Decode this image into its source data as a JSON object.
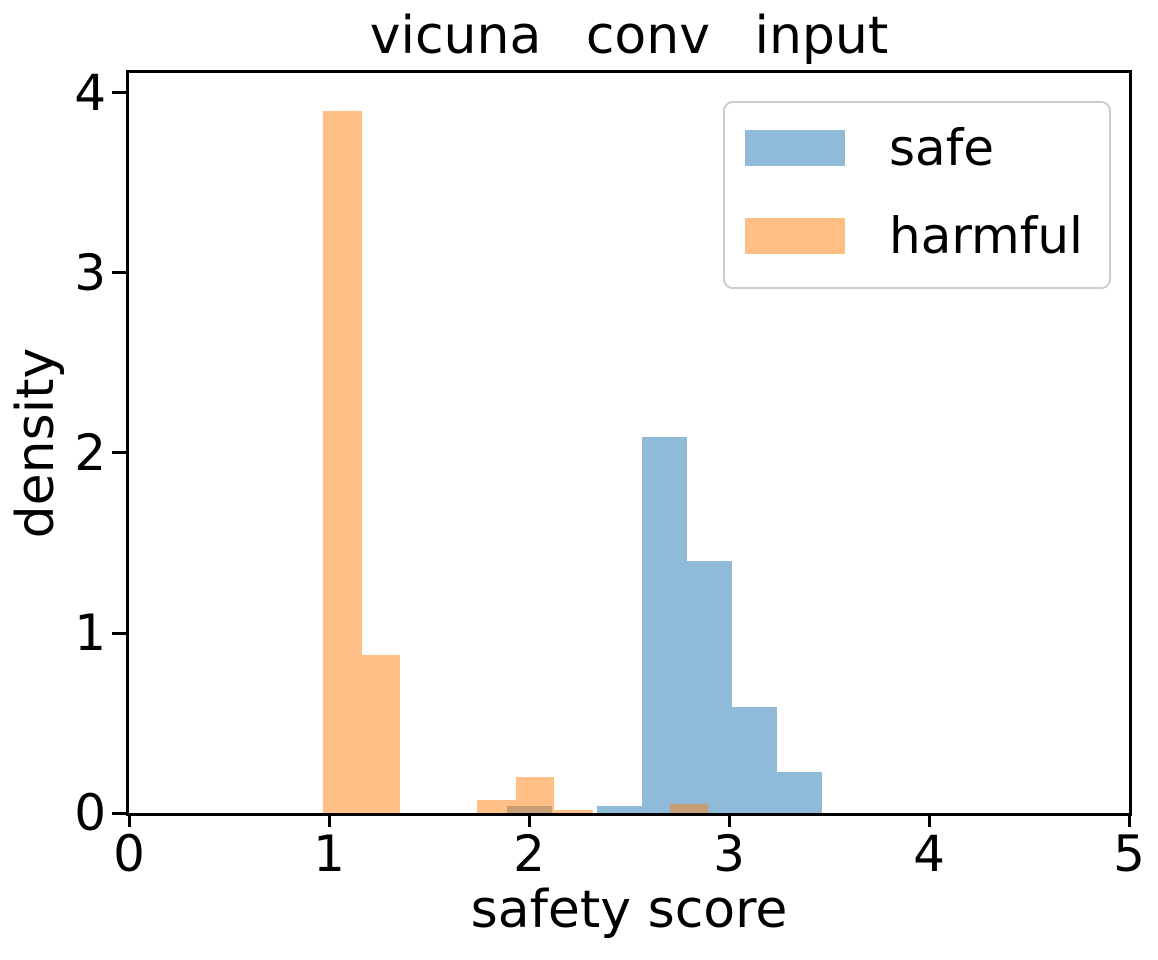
{
  "chart_data": {
    "type": "histogram",
    "title": "vicuna conv input",
    "xlabel": "safety score",
    "ylabel": "density",
    "xlim": [
      0,
      5
    ],
    "ylim": [
      0,
      4.11
    ],
    "xticks": [
      "0",
      "1",
      "2",
      "3",
      "4",
      "5"
    ],
    "xtick_values": [
      0,
      1,
      2,
      3,
      4,
      5
    ],
    "yticks": [
      "0",
      "1",
      "2",
      "3",
      "4"
    ],
    "ytick_values": [
      0,
      1,
      2,
      3,
      4
    ],
    "grid": false,
    "legend_position": "upper right",
    "background_color": "#ffffff",
    "series": [
      {
        "name": "safe",
        "color": "#1f77b4",
        "alpha": 0.5,
        "bin_edges": [
          1.89,
          2.115,
          2.34,
          2.565,
          2.79,
          3.015,
          3.24,
          3.465
        ],
        "densities": [
          0.04,
          0,
          0.04,
          2.09,
          1.4,
          0.59,
          0.23
        ]
      },
      {
        "name": "harmful",
        "color": "#ff7f0e",
        "alpha": 0.5,
        "bin_edges": [
          0.97,
          1.1625,
          1.355,
          1.5475,
          1.74,
          1.9325,
          2.125,
          2.3175,
          2.51,
          2.7025,
          2.895
        ],
        "densities": [
          3.9,
          0.88,
          0,
          0,
          0.07,
          0.2,
          0.015,
          0,
          0,
          0.05
        ]
      }
    ]
  }
}
